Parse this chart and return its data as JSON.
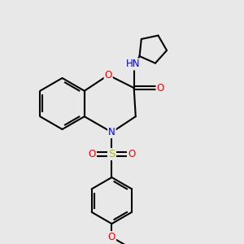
{
  "background_color": "#e8e8e8",
  "bond_color": "#000000",
  "atom_colors": {
    "O": "#ff0000",
    "N": "#0000ff",
    "S": "#b8b800",
    "H": "#4a9090",
    "C": "#000000"
  },
  "figsize": [
    3.0,
    3.0
  ],
  "dpi": 100
}
